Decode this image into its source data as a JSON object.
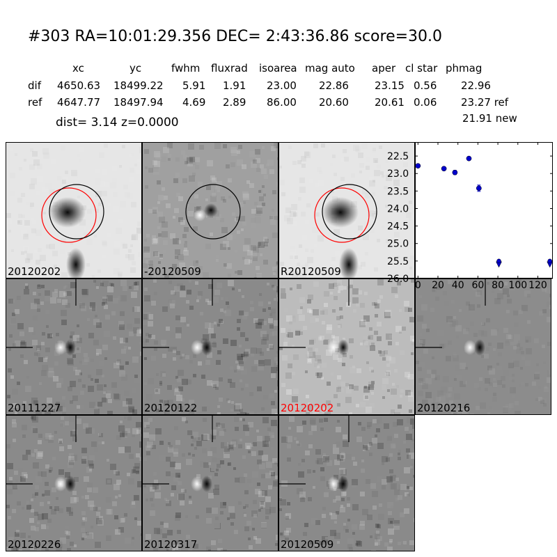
{
  "header": {
    "title": "#303   RA=10:01:29.356 DEC= 2:43:36.86       score=30.0",
    "columns": [
      "xc",
      "yc",
      "fwhm",
      "fluxrad",
      "isoarea",
      "mag auto",
      "aper",
      "cl star",
      "phmag"
    ],
    "rows": [
      {
        "label": "dif",
        "values": [
          "4650.63",
          "18499.22",
          "5.91",
          "1.91",
          "23.00",
          "22.86",
          "23.15",
          "0.56",
          "22.96"
        ]
      },
      {
        "label": "ref",
        "values": [
          "4647.77",
          "18497.94",
          "4.69",
          "2.89",
          "86.00",
          "20.60",
          "20.61",
          "0.06",
          "23.27 ref"
        ]
      }
    ],
    "dist_line": "dist=  3.14       z=0.0000",
    "new_mag": "21.91 new"
  },
  "panels": [
    {
      "label": "20120202",
      "tone": "light",
      "circles": "both",
      "label_color": "#000000"
    },
    {
      "label": "-20120509",
      "tone": "mid",
      "circles": "black",
      "label_color": "#000000"
    },
    {
      "label": "R20120509",
      "tone": "light",
      "circles": "both",
      "label_color": "#000000"
    },
    {
      "label": "20111227",
      "tone": "diff",
      "circles": "none",
      "label_color": "#000000"
    },
    {
      "label": "20120122",
      "tone": "diff",
      "circles": "none",
      "label_color": "#000000"
    },
    {
      "label": "20120202",
      "tone": "diffnoisy",
      "circles": "none",
      "label_color": "#ff0000"
    },
    {
      "label": "20120216",
      "tone": "diffsmooth",
      "circles": "none",
      "label_color": "#000000"
    },
    {
      "label": "20120226",
      "tone": "diff",
      "circles": "none",
      "label_color": "#000000"
    },
    {
      "label": "20120317",
      "tone": "diff",
      "circles": "none",
      "label_color": "#000000"
    },
    {
      "label": "20120509",
      "tone": "diff",
      "circles": "none",
      "label_color": "#000000"
    }
  ],
  "chart_data": {
    "type": "scatter",
    "title": "",
    "xlabel": "",
    "ylabel": "",
    "xlim": [
      -3,
      135
    ],
    "ylim": [
      26.0,
      22.1
    ],
    "y_inverted": true,
    "x_ticks": [
      0,
      20,
      40,
      60,
      80,
      100,
      120
    ],
    "y_ticks": [
      22.5,
      23.0,
      23.5,
      24.0,
      24.5,
      25.0,
      25.5,
      26.0
    ],
    "x_tick_labels": [
      "0",
      "20",
      "40",
      "60",
      "80",
      "100",
      "120"
    ],
    "y_tick_labels": [
      "22.5",
      "23.0",
      "23.5",
      "24.0",
      "24.5",
      "25.0",
      "25.5",
      "26.0"
    ],
    "color": "#0000cc",
    "points": [
      {
        "x": 0,
        "y": 22.78,
        "err": 0.05
      },
      {
        "x": 26,
        "y": 22.86,
        "err": 0.05
      },
      {
        "x": 37,
        "y": 22.97,
        "err": 0.06
      },
      {
        "x": 51,
        "y": 22.57,
        "err": 0.05
      },
      {
        "x": 61,
        "y": 23.42,
        "err": 0.09
      }
    ],
    "upper_limits": [
      {
        "x": 81,
        "y": 25.6
      },
      {
        "x": 132,
        "y": 25.6
      }
    ]
  }
}
